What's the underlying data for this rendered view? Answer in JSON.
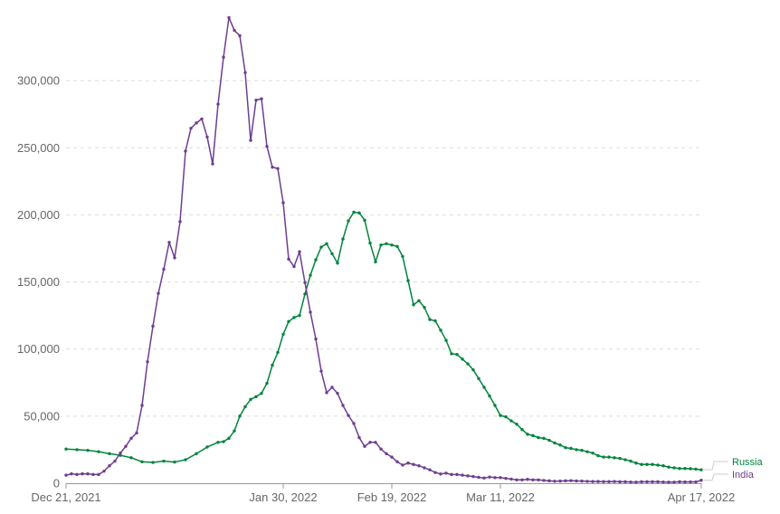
{
  "chart_data": {
    "type": "line",
    "title": "",
    "xlabel": "",
    "ylabel": "",
    "x_start": "2021-12-21",
    "x_end": "2022-04-17",
    "ylim": [
      0,
      350000
    ],
    "yticks": [
      {
        "value": 0,
        "label": "0"
      },
      {
        "value": 50000,
        "label": "50,000"
      },
      {
        "value": 100000,
        "label": "100,000"
      },
      {
        "value": 150000,
        "label": "150,000"
      },
      {
        "value": 200000,
        "label": "200,000"
      },
      {
        "value": 250000,
        "label": "250,000"
      },
      {
        "value": 300000,
        "label": "300,000"
      }
    ],
    "xticks": [
      {
        "date": "2021-12-21",
        "label": "Dec 21, 2021"
      },
      {
        "date": "2022-01-30",
        "label": "Jan 30, 2022"
      },
      {
        "date": "2022-02-19",
        "label": "Feb 19, 2022"
      },
      {
        "date": "2022-03-11",
        "label": "Mar 11, 2022"
      },
      {
        "date": "2022-04-17",
        "label": "Apr 17, 2022"
      }
    ],
    "grid": true,
    "legend": "right end labels",
    "series": [
      {
        "name": "Russia",
        "color": "#00843d",
        "points": [
          [
            "2021-12-21",
            25500
          ],
          [
            "2021-12-23",
            25000
          ],
          [
            "2021-12-25",
            24500
          ],
          [
            "2021-12-27",
            23500
          ],
          [
            "2021-12-29",
            22000
          ],
          [
            "2021-12-31",
            20800
          ],
          [
            "2022-01-02",
            19000
          ],
          [
            "2022-01-04",
            16000
          ],
          [
            "2022-01-06",
            15500
          ],
          [
            "2022-01-08",
            16500
          ],
          [
            "2022-01-10",
            15800
          ],
          [
            "2022-01-12",
            17500
          ],
          [
            "2022-01-14",
            22000
          ],
          [
            "2022-01-16",
            27000
          ],
          [
            "2022-01-18",
            30500
          ],
          [
            "2022-01-19",
            31000
          ],
          [
            "2022-01-20",
            33500
          ],
          [
            "2022-01-21",
            39000
          ],
          [
            "2022-01-22",
            50000
          ],
          [
            "2022-01-23",
            57000
          ],
          [
            "2022-01-24",
            62500
          ],
          [
            "2022-01-25",
            64500
          ],
          [
            "2022-01-26",
            67000
          ],
          [
            "2022-01-27",
            74500
          ],
          [
            "2022-01-28",
            88000
          ],
          [
            "2022-01-29",
            97500
          ],
          [
            "2022-01-30",
            111000
          ],
          [
            "2022-01-31",
            120500
          ],
          [
            "2022-02-01",
            123500
          ],
          [
            "2022-02-02",
            125000
          ],
          [
            "2022-02-03",
            141000
          ],
          [
            "2022-02-04",
            155000
          ],
          [
            "2022-02-05",
            166500
          ],
          [
            "2022-02-06",
            176000
          ],
          [
            "2022-02-07",
            178500
          ],
          [
            "2022-02-08",
            171000
          ],
          [
            "2022-02-09",
            164000
          ],
          [
            "2022-02-10",
            182000
          ],
          [
            "2022-02-11",
            195500
          ],
          [
            "2022-02-12",
            202000
          ],
          [
            "2022-02-13",
            201500
          ],
          [
            "2022-02-14",
            196000
          ],
          [
            "2022-02-15",
            179000
          ],
          [
            "2022-02-16",
            165000
          ],
          [
            "2022-02-17",
            177500
          ],
          [
            "2022-02-18",
            178500
          ],
          [
            "2022-02-19",
            177500
          ],
          [
            "2022-02-20",
            176500
          ],
          [
            "2022-02-21",
            169000
          ],
          [
            "2022-02-22",
            151000
          ],
          [
            "2022-02-23",
            133000
          ],
          [
            "2022-02-24",
            136000
          ],
          [
            "2022-02-25",
            131000
          ],
          [
            "2022-02-26",
            122000
          ],
          [
            "2022-02-27",
            121000
          ],
          [
            "2022-02-28",
            114000
          ],
          [
            "2022-03-01",
            106500
          ],
          [
            "2022-03-02",
            96500
          ],
          [
            "2022-03-03",
            96000
          ],
          [
            "2022-03-04",
            92500
          ],
          [
            "2022-03-05",
            89000
          ],
          [
            "2022-03-06",
            84500
          ],
          [
            "2022-03-07",
            78000
          ],
          [
            "2022-03-08",
            71500
          ],
          [
            "2022-03-09",
            65000
          ],
          [
            "2022-03-10",
            58000
          ],
          [
            "2022-03-11",
            50500
          ],
          [
            "2022-03-12",
            49500
          ],
          [
            "2022-03-13",
            46500
          ],
          [
            "2022-03-14",
            44000
          ],
          [
            "2022-03-15",
            40000
          ],
          [
            "2022-03-16",
            36500
          ],
          [
            "2022-03-17",
            35500
          ],
          [
            "2022-03-18",
            34000
          ],
          [
            "2022-03-19",
            33500
          ],
          [
            "2022-03-20",
            32000
          ],
          [
            "2022-03-21",
            30000
          ],
          [
            "2022-03-22",
            28500
          ],
          [
            "2022-03-23",
            26500
          ],
          [
            "2022-03-24",
            26000
          ],
          [
            "2022-03-25",
            25000
          ],
          [
            "2022-03-26",
            24500
          ],
          [
            "2022-03-27",
            23500
          ],
          [
            "2022-03-28",
            22500
          ],
          [
            "2022-03-29",
            20500
          ],
          [
            "2022-03-30",
            19500
          ],
          [
            "2022-03-31",
            19500
          ],
          [
            "2022-04-01",
            19000
          ],
          [
            "2022-04-02",
            18500
          ],
          [
            "2022-04-03",
            17500
          ],
          [
            "2022-04-04",
            16500
          ],
          [
            "2022-04-05",
            15000
          ],
          [
            "2022-04-06",
            14000
          ],
          [
            "2022-04-07",
            14000
          ],
          [
            "2022-04-08",
            14000
          ],
          [
            "2022-04-09",
            13500
          ],
          [
            "2022-04-10",
            13000
          ],
          [
            "2022-04-11",
            12000
          ],
          [
            "2022-04-12",
            11500
          ],
          [
            "2022-04-13",
            11000
          ],
          [
            "2022-04-14",
            11000
          ],
          [
            "2022-04-15",
            10800
          ],
          [
            "2022-04-16",
            10500
          ],
          [
            "2022-04-17",
            10000
          ]
        ]
      },
      {
        "name": "India",
        "color": "#6d3e91",
        "points": [
          [
            "2021-12-21",
            6000
          ],
          [
            "2021-12-22",
            7000
          ],
          [
            "2021-12-23",
            6500
          ],
          [
            "2021-12-24",
            7000
          ],
          [
            "2021-12-25",
            7000
          ],
          [
            "2021-12-26",
            6500
          ],
          [
            "2021-12-27",
            6500
          ],
          [
            "2021-12-28",
            9000
          ],
          [
            "2021-12-29",
            13000
          ],
          [
            "2021-12-30",
            16500
          ],
          [
            "2021-12-31",
            22500
          ],
          [
            "2022-01-01",
            27500
          ],
          [
            "2022-01-02",
            33500
          ],
          [
            "2022-01-03",
            37500
          ],
          [
            "2022-01-04",
            58000
          ],
          [
            "2022-01-05",
            90500
          ],
          [
            "2022-01-06",
            117000
          ],
          [
            "2022-01-07",
            141500
          ],
          [
            "2022-01-08",
            159500
          ],
          [
            "2022-01-09",
            179500
          ],
          [
            "2022-01-10",
            168000
          ],
          [
            "2022-01-11",
            195000
          ],
          [
            "2022-01-12",
            247500
          ],
          [
            "2022-01-13",
            264500
          ],
          [
            "2022-01-14",
            268500
          ],
          [
            "2022-01-15",
            271500
          ],
          [
            "2022-01-16",
            258000
          ],
          [
            "2022-01-17",
            238000
          ],
          [
            "2022-01-18",
            282500
          ],
          [
            "2022-01-19",
            317500
          ],
          [
            "2022-01-20",
            347000
          ],
          [
            "2022-01-21",
            337500
          ],
          [
            "2022-01-22",
            333500
          ],
          [
            "2022-01-23",
            306000
          ],
          [
            "2022-01-24",
            255500
          ],
          [
            "2022-01-25",
            285500
          ],
          [
            "2022-01-26",
            286500
          ],
          [
            "2022-01-27",
            251000
          ],
          [
            "2022-01-28",
            235500
          ],
          [
            "2022-01-29",
            234500
          ],
          [
            "2022-01-30",
            209000
          ],
          [
            "2022-01-31",
            167000
          ],
          [
            "2022-02-01",
            161500
          ],
          [
            "2022-02-02",
            172500
          ],
          [
            "2022-02-03",
            149500
          ],
          [
            "2022-02-04",
            127500
          ],
          [
            "2022-02-05",
            107500
          ],
          [
            "2022-02-06",
            83500
          ],
          [
            "2022-02-07",
            67500
          ],
          [
            "2022-02-08",
            71500
          ],
          [
            "2022-02-09",
            67000
          ],
          [
            "2022-02-10",
            58000
          ],
          [
            "2022-02-11",
            50500
          ],
          [
            "2022-02-12",
            44500
          ],
          [
            "2022-02-13",
            34000
          ],
          [
            "2022-02-14",
            27500
          ],
          [
            "2022-02-15",
            30500
          ],
          [
            "2022-02-16",
            30500
          ],
          [
            "2022-02-17",
            25500
          ],
          [
            "2022-02-18",
            22000
          ],
          [
            "2022-02-19",
            19500
          ],
          [
            "2022-02-20",
            16000
          ],
          [
            "2022-02-21",
            13500
          ],
          [
            "2022-02-22",
            15000
          ],
          [
            "2022-02-23",
            14000
          ],
          [
            "2022-02-24",
            13000
          ],
          [
            "2022-02-25",
            11500
          ],
          [
            "2022-02-26",
            10000
          ],
          [
            "2022-02-27",
            8000
          ],
          [
            "2022-02-28",
            6900
          ],
          [
            "2022-03-01",
            7500
          ],
          [
            "2022-03-02",
            6500
          ],
          [
            "2022-03-03",
            6500
          ],
          [
            "2022-03-04",
            6000
          ],
          [
            "2022-03-05",
            5500
          ],
          [
            "2022-03-06",
            5000
          ],
          [
            "2022-03-07",
            4400
          ],
          [
            "2022-03-08",
            3900
          ],
          [
            "2022-03-09",
            4600
          ],
          [
            "2022-03-10",
            4200
          ],
          [
            "2022-03-11",
            4200
          ],
          [
            "2022-03-12",
            3600
          ],
          [
            "2022-03-13",
            3100
          ],
          [
            "2022-03-14",
            2500
          ],
          [
            "2022-03-15",
            2500
          ],
          [
            "2022-03-16",
            2900
          ],
          [
            "2022-03-17",
            2500
          ],
          [
            "2022-03-18",
            2500
          ],
          [
            "2022-03-19",
            2100
          ],
          [
            "2022-03-20",
            1800
          ],
          [
            "2022-03-21",
            1500
          ],
          [
            "2022-03-22",
            1600
          ],
          [
            "2022-03-23",
            1800
          ],
          [
            "2022-03-24",
            1900
          ],
          [
            "2022-03-25",
            1700
          ],
          [
            "2022-03-26",
            1600
          ],
          [
            "2022-03-27",
            1400
          ],
          [
            "2022-03-28",
            1300
          ],
          [
            "2022-03-29",
            1300
          ],
          [
            "2022-03-30",
            1200
          ],
          [
            "2022-03-31",
            1200
          ],
          [
            "2022-04-01",
            1300
          ],
          [
            "2022-04-02",
            1100
          ],
          [
            "2022-04-03",
            1100
          ],
          [
            "2022-04-04",
            900
          ],
          [
            "2022-04-05",
            800
          ],
          [
            "2022-04-06",
            1100
          ],
          [
            "2022-04-07",
            1100
          ],
          [
            "2022-04-08",
            1100
          ],
          [
            "2022-04-09",
            1100
          ],
          [
            "2022-04-10",
            900
          ],
          [
            "2022-04-11",
            800
          ],
          [
            "2022-04-12",
            800
          ],
          [
            "2022-04-13",
            1100
          ],
          [
            "2022-04-14",
            950
          ],
          [
            "2022-04-15",
            1000
          ],
          [
            "2022-04-16",
            1000
          ],
          [
            "2022-04-17",
            2200
          ]
        ]
      }
    ]
  }
}
